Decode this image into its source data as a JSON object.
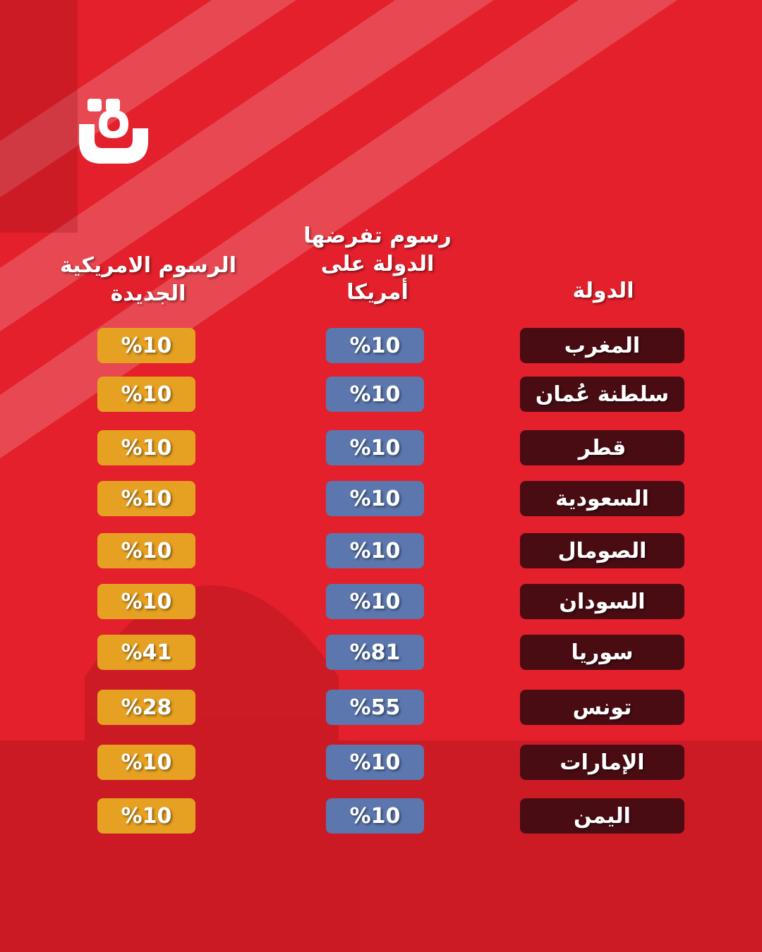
{
  "header": [
    "الدولة",
    "رسوم تفرضها\nالدولة على\nأمريكا",
    "الرسوم الامريكية\nالجديدة"
  ],
  "table": {
    "rows": [
      [
        "المغرب",
        "%10",
        "%10"
      ],
      [
        "سلطنة عُمان",
        "%10",
        "%10"
      ],
      [
        "قطر",
        "%10",
        "%10"
      ],
      [
        "السعودية",
        "%10",
        "%10"
      ],
      [
        "الصومال",
        "%10",
        "%10"
      ],
      [
        "السودان",
        "%10",
        "%10"
      ],
      [
        "سوريا",
        "%81",
        "%41"
      ],
      [
        "تونس",
        "%55",
        "%28"
      ],
      [
        "الإمارات",
        "%10",
        "%10"
      ],
      [
        "اليمن",
        "%10",
        "%10"
      ]
    ]
  }
}
